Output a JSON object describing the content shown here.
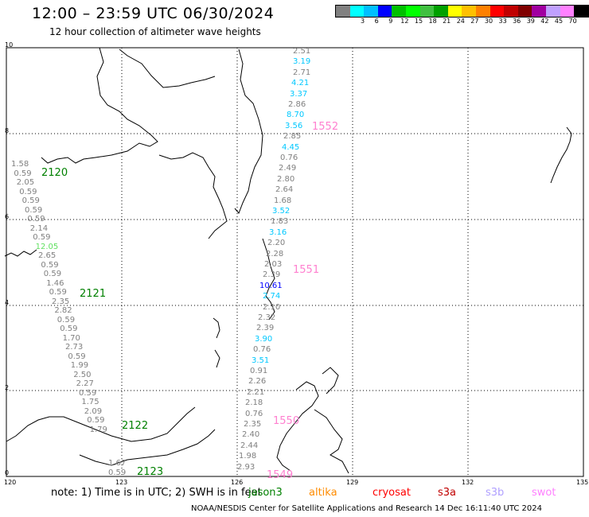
{
  "header": {
    "title": "12:00 – 23:59 UTC 06/30/2024",
    "subtitle": "12 hour collection of altimeter wave heights"
  },
  "legend": {
    "unit": "(ft)",
    "swatches": [
      {
        "color": "#808080",
        "label": ""
      },
      {
        "color": "#00ffff",
        "label": "3"
      },
      {
        "color": "#00bfff",
        "label": "6"
      },
      {
        "color": "#0000ff",
        "label": "9"
      },
      {
        "color": "#00c000",
        "label": "12"
      },
      {
        "color": "#00ff00",
        "label": "15"
      },
      {
        "color": "#40c040",
        "label": "18"
      },
      {
        "color": "#00a000",
        "label": "21"
      },
      {
        "color": "#ffff00",
        "label": "24"
      },
      {
        "color": "#ffc000",
        "label": "27"
      },
      {
        "color": "#ff8000",
        "label": "30"
      },
      {
        "color": "#ff0000",
        "label": "33"
      },
      {
        "color": "#c00000",
        "label": "36"
      },
      {
        "color": "#800000",
        "label": "39"
      },
      {
        "color": "#a000a0",
        "label": "42"
      },
      {
        "color": "#c0a0ff",
        "label": "45"
      },
      {
        "color": "#ff80ff",
        "label": "70"
      },
      {
        "color": "#000000",
        "label": ""
      }
    ]
  },
  "axes": {
    "lon_ticks": [
      "120",
      "123",
      "126",
      "129",
      "132",
      "135"
    ],
    "lat_ticks": [
      "10",
      "8",
      "6",
      "4",
      "2",
      "0"
    ]
  },
  "track_east": {
    "values": [
      "2.51",
      "3.19",
      "2.71",
      "4.21",
      "3.37",
      "2.86",
      "8.70",
      "3.56",
      "2.85",
      "4.45",
      "0.76",
      "2.49",
      "2.80",
      "2.64",
      "1.68",
      "3.52",
      "1.83",
      "3.16",
      "2.20",
      "2.28",
      "2.03",
      "2.39",
      "10.61",
      "2.74",
      "2.10",
      "2.32",
      "2.39",
      "3.90",
      "0.76",
      "3.51",
      "0.91",
      "2.26",
      "2.21",
      "2.18",
      "0.76",
      "2.35",
      "2.40",
      "2.44",
      "1.98",
      "2.93"
    ],
    "colors": [
      "#808080",
      "#00c8ff",
      "#808080",
      "#00c8ff",
      "#00c8ff",
      "#808080",
      "#00c8ff",
      "#00c8ff",
      "#808080",
      "#00c8ff",
      "#808080",
      "#808080",
      "#808080",
      "#808080",
      "#808080",
      "#00c8ff",
      "#808080",
      "#00c8ff",
      "#808080",
      "#808080",
      "#808080",
      "#808080",
      "#0000ff",
      "#00c8ff",
      "#808080",
      "#808080",
      "#808080",
      "#00c8ff",
      "#808080",
      "#00c8ff",
      "#808080",
      "#808080",
      "#808080",
      "#808080",
      "#808080",
      "#808080",
      "#808080",
      "#808080",
      "#808080",
      "#808080"
    ]
  },
  "track_west": {
    "values": [
      "1.58",
      "0.59",
      "2.05",
      "0.59",
      "0.59",
      "0.59",
      "0.59",
      "2.14",
      "0.59",
      "12.05",
      "2.65",
      "0.59",
      "0.59",
      "1.46",
      "0.59",
      "2.35",
      "2.82",
      "0.59",
      "0.59",
      "1.70",
      "2.73",
      "0.59",
      "1.99",
      "2.50",
      "2.27",
      "0.59",
      "1.75",
      "2.09",
      "0.59",
      "1.79",
      "1.67",
      "0.59"
    ],
    "colors": [
      "#808080",
      "#808080",
      "#808080",
      "#808080",
      "#808080",
      "#808080",
      "#808080",
      "#808080",
      "#808080",
      "#60e060",
      "#808080",
      "#808080",
      "#808080",
      "#808080",
      "#808080",
      "#808080",
      "#808080",
      "#808080",
      "#808080",
      "#808080",
      "#808080",
      "#808080",
      "#808080",
      "#808080",
      "#808080",
      "#808080",
      "#808080",
      "#808080",
      "#808080",
      "#808080",
      "#808080",
      "#808080"
    ]
  },
  "passes": [
    {
      "label": "1552",
      "color": "#ff80d0"
    },
    {
      "label": "1551",
      "color": "#ff80d0"
    },
    {
      "label": "1550",
      "color": "#ff80d0"
    },
    {
      "label": "1549",
      "color": "#ff80d0"
    },
    {
      "label": "2120",
      "color": "#008000"
    },
    {
      "label": "2121",
      "color": "#008000"
    },
    {
      "label": "2122",
      "color": "#008000"
    },
    {
      "label": "2123",
      "color": "#008000"
    }
  ],
  "note": "note: 1) Time is in UTC; 2) SWH is in feet",
  "satellites": [
    {
      "name": "jason3",
      "color": "#008000"
    },
    {
      "name": "altika",
      "color": "#ff8c00"
    },
    {
      "name": "cryosat",
      "color": "#ff0000"
    },
    {
      "name": "s3a",
      "color": "#c00000"
    },
    {
      "name": "s3b",
      "color": "#b0a0ff"
    },
    {
      "name": "swot",
      "color": "#ff80ff"
    }
  ],
  "footer": "NOAA/NESDIS Center for Satellite Applications and Research    14 Dec 16:11:40 UTC 2024"
}
